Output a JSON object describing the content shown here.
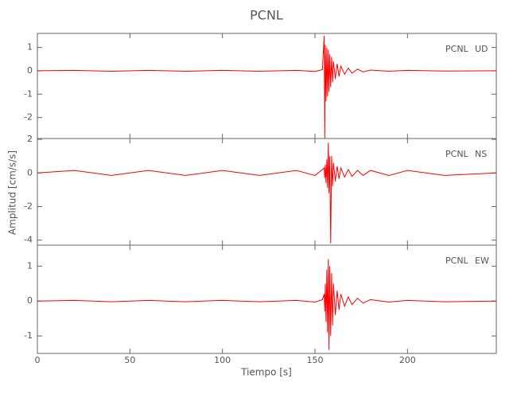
{
  "chart_data": [
    {
      "type": "line",
      "title": "PCNL",
      "station": "PCNL",
      "component": "UD",
      "x": [
        0,
        20,
        40,
        60,
        80,
        100,
        120,
        140,
        150,
        154,
        155,
        155.3,
        155.6,
        156,
        156.4,
        156.8,
        157.2,
        157.6,
        158,
        158.5,
        159,
        159.5,
        160,
        161,
        162,
        163,
        164,
        166,
        168,
        170,
        173,
        176,
        180,
        190,
        200,
        220,
        248
      ],
      "series": [
        {
          "color": "#ff0000",
          "values": [
            0,
            0.02,
            -0.02,
            0.02,
            -0.02,
            0.02,
            -0.02,
            0.02,
            -0.03,
            0.05,
            1.5,
            -2.9,
            1.1,
            -1.3,
            1.0,
            -1.1,
            0.9,
            -0.9,
            0.7,
            -0.7,
            0.6,
            -0.5,
            0.4,
            -0.35,
            0.3,
            -0.25,
            0.2,
            -0.15,
            0.12,
            -0.1,
            0.07,
            -0.05,
            0.03,
            -0.02,
            0.02,
            -0.01,
            0
          ]
        }
      ],
      "xlim": [
        0,
        248
      ],
      "ylim": [
        -2.9,
        1.6
      ],
      "yticks": [
        -2,
        -1,
        0,
        1
      ]
    },
    {
      "type": "line",
      "y_label": "Amplitud [cm/s/s]",
      "station": "PCNL",
      "component": "NS",
      "x": [
        0,
        20,
        40,
        60,
        80,
        100,
        120,
        140,
        150,
        154,
        155,
        155.3,
        155.6,
        156,
        156.4,
        156.8,
        157.2,
        157.6,
        158,
        158.5,
        159,
        159.5,
        160,
        161,
        162,
        163,
        164,
        166,
        168,
        170,
        173,
        176,
        180,
        190,
        200,
        220,
        248
      ],
      "series": [
        {
          "color": "#ff0000",
          "values": [
            0,
            0.15,
            -0.15,
            0.15,
            -0.15,
            0.15,
            -0.15,
            0.15,
            -0.15,
            0.2,
            0.3,
            -0.3,
            0.5,
            -0.6,
            0.8,
            -0.9,
            1.8,
            -1.2,
            1.0,
            -4.2,
            1.0,
            -0.8,
            0.6,
            -0.5,
            0.4,
            -0.35,
            0.3,
            -0.25,
            0.2,
            -0.2,
            0.15,
            -0.15,
            0.15,
            -0.15,
            0.15,
            -0.15,
            0
          ]
        }
      ],
      "xlim": [
        0,
        248
      ],
      "ylim": [
        -4.3,
        2.05
      ],
      "yticks": [
        -4,
        -2,
        0,
        2
      ]
    },
    {
      "type": "line",
      "x_label": "Tiempo [s]",
      "station": "PCNL",
      "component": "EW",
      "x": [
        0,
        20,
        40,
        60,
        80,
        100,
        120,
        140,
        150,
        154,
        155,
        155.3,
        155.6,
        156,
        156.4,
        156.8,
        157.2,
        157.6,
        158,
        158.5,
        159,
        159.5,
        160,
        161,
        162,
        163,
        164,
        166,
        168,
        170,
        173,
        176,
        180,
        190,
        200,
        220,
        248
      ],
      "series": [
        {
          "color": "#ff0000",
          "values": [
            0,
            0.02,
            -0.02,
            0.02,
            -0.02,
            0.02,
            -0.02,
            0.02,
            -0.03,
            0.04,
            0.2,
            -0.3,
            0.5,
            -0.6,
            0.9,
            -0.9,
            1.2,
            -1.4,
            1.0,
            -1.0,
            0.8,
            -0.7,
            0.5,
            -0.4,
            0.3,
            -0.25,
            0.2,
            -0.15,
            0.12,
            -0.1,
            0.08,
            -0.06,
            0.04,
            -0.03,
            0.02,
            -0.02,
            0
          ]
        }
      ],
      "xlim": [
        0,
        248
      ],
      "ylim": [
        -1.5,
        1.6
      ],
      "yticks": [
        -1,
        0,
        1
      ],
      "xticks": [
        0,
        50,
        100,
        150,
        200
      ]
    }
  ]
}
